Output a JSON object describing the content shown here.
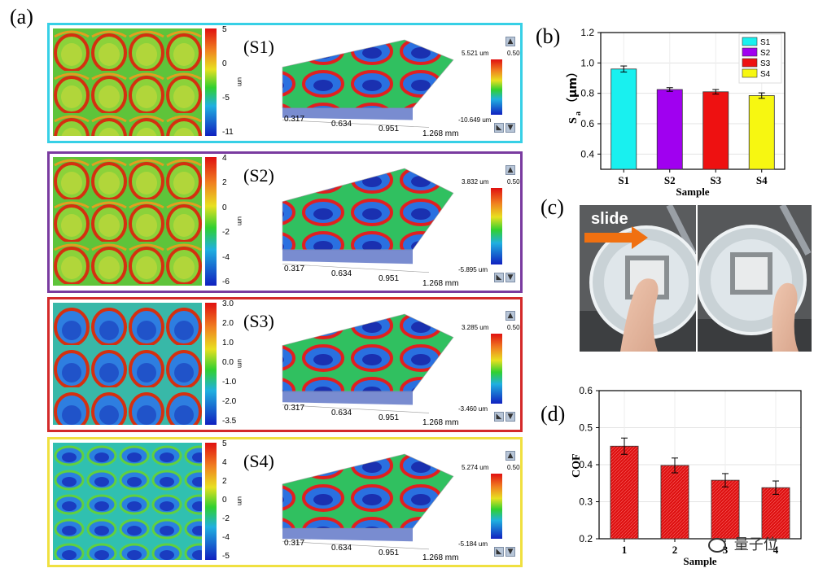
{
  "panel_labels": {
    "a": "(a)",
    "b": "(b)",
    "c": "(c)",
    "d": "(d)"
  },
  "samples": [
    {
      "id": "(S1)",
      "frame_color": "#37d0e6",
      "cb_ticks": [
        "5",
        "0",
        "-5",
        "-11"
      ],
      "cb_unit": "um",
      "cb3d_max": "5.521 um",
      "cb3d_min": "-10.649 um",
      "cb3d_side": "0.50",
      "axis_ticks": [
        "0.317",
        "0.634",
        "0.951",
        "1.268 mm"
      ]
    },
    {
      "id": "(S2)",
      "frame_color": "#7a3ba0",
      "cb_ticks": [
        "4",
        "2",
        "0",
        "-2",
        "-4",
        "-6"
      ],
      "cb_unit": "um",
      "cb3d_max": "3.832 um",
      "cb3d_min": "-5.895 um",
      "cb3d_side": "0.50",
      "axis_ticks": [
        "0.317",
        "0.634",
        "0.951",
        "1.268 mm"
      ]
    },
    {
      "id": "(S3)",
      "frame_color": "#d42a2a",
      "cb_ticks": [
        "3.0",
        "2.0",
        "1.0",
        "0.0",
        "-1.0",
        "-2.0",
        "-3.5"
      ],
      "cb_unit": "um",
      "cb3d_max": "3.285 um",
      "cb3d_min": "-3.460 um",
      "cb3d_side": "0.50",
      "axis_ticks": [
        "0.317",
        "0.634",
        "0.951",
        "1.268 mm"
      ]
    },
    {
      "id": "(S4)",
      "frame_color": "#f0e040",
      "cb_ticks": [
        "5",
        "4",
        "2",
        "0",
        "-2",
        "-4",
        "-5"
      ],
      "cb_unit": "um",
      "cb3d_max": "5.274 um",
      "cb3d_min": "-5.184 um",
      "cb3d_side": "0.50",
      "axis_ticks": [
        "0.317",
        "0.634",
        "0.951",
        "1.268 mm"
      ]
    }
  ],
  "photo": {
    "slide_label": "slide"
  },
  "watermark": {
    "text": "量子位"
  },
  "chart_data": [
    {
      "type": "bar",
      "panel": "(b)",
      "categories": [
        "S1",
        "S2",
        "S3",
        "S4"
      ],
      "values": [
        0.96,
        0.825,
        0.81,
        0.785
      ],
      "errors": [
        0.02,
        0.012,
        0.015,
        0.018
      ],
      "colors": [
        "#19f0ef",
        "#a000f0",
        "#ee1111",
        "#f7f711"
      ],
      "legend": [
        "S1",
        "S2",
        "S3",
        "S4"
      ],
      "legend_position": "top-right",
      "xlabel": "Sample",
      "ylabel_main": "S",
      "ylabel_sub": "a",
      "ylabel_unit": "（μm）",
      "ylim": [
        0.3,
        1.2
      ],
      "yticks": [
        "0.4",
        "0.6",
        "0.8",
        "1.0",
        "1.2"
      ],
      "grid": true
    },
    {
      "type": "bar",
      "panel": "(d)",
      "categories": [
        "1",
        "2",
        "3",
        "4"
      ],
      "values": [
        0.45,
        0.398,
        0.358,
        0.338
      ],
      "errors": [
        0.022,
        0.02,
        0.018,
        0.018
      ],
      "colors": [
        "#dd1111",
        "#dd1111",
        "#dd1111",
        "#dd1111"
      ],
      "xlabel": "Sample",
      "ylabel": "COF",
      "ylim": [
        0.2,
        0.6
      ],
      "yticks": [
        "0.2",
        "0.3",
        "0.4",
        "0.5",
        "0.6"
      ],
      "grid": true
    }
  ]
}
